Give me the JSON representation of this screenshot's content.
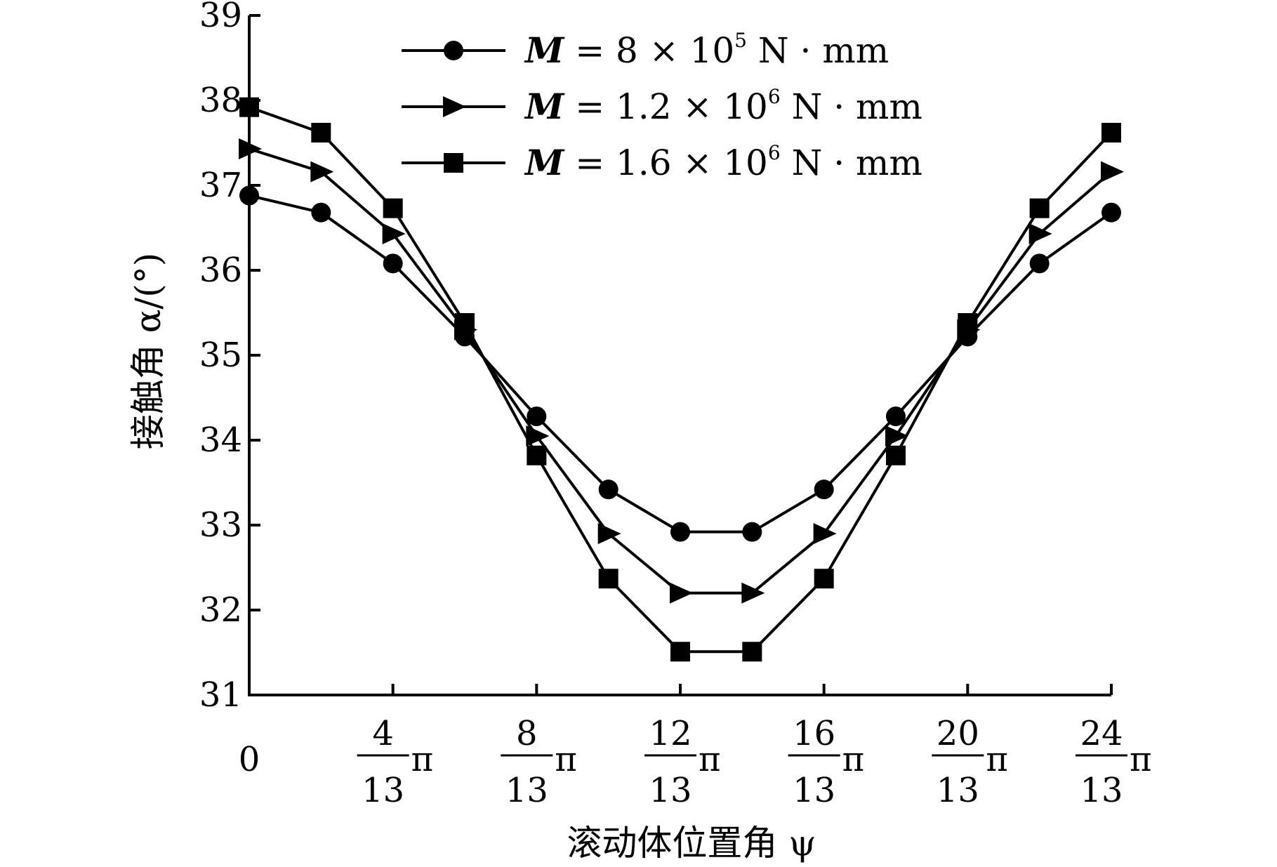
{
  "chart_data": {
    "type": "line",
    "xlabel": "滚动体位置角 ψ",
    "ylabel": "接触角 α/(°)",
    "ylim": [
      31,
      39
    ],
    "xlim": [
      0,
      24
    ],
    "x_unit": "π/13",
    "grid": false,
    "legend_position": "top-center",
    "y_ticks": [
      31,
      32,
      33,
      34,
      35,
      36,
      37,
      38,
      39
    ],
    "x_ticks": [
      {
        "value": 0,
        "numerator": "0",
        "denominator": "",
        "suffix": ""
      },
      {
        "value": 4,
        "numerator": "4",
        "denominator": "13",
        "suffix": "π"
      },
      {
        "value": 8,
        "numerator": "8",
        "denominator": "13",
        "suffix": "π"
      },
      {
        "value": 12,
        "numerator": "12",
        "denominator": "13",
        "suffix": "π"
      },
      {
        "value": 16,
        "numerator": "16",
        "denominator": "13",
        "suffix": "π"
      },
      {
        "value": 20,
        "numerator": "20",
        "denominator": "13",
        "suffix": "π"
      },
      {
        "value": 24,
        "numerator": "24",
        "denominator": "13",
        "suffix": "π"
      }
    ],
    "x": [
      0,
      2,
      4,
      6,
      8,
      10,
      12,
      14,
      16,
      18,
      20,
      22,
      24
    ],
    "series": [
      {
        "name": "M = 8 × 10⁵ N · mm",
        "label_parts": {
          "var": "M",
          "eq": " = 8 × 10",
          "exp": "5",
          "unit": " N · mm"
        },
        "marker": "circle",
        "color": "#000000",
        "values": [
          36.88,
          36.68,
          36.08,
          35.22,
          34.28,
          33.42,
          32.92,
          32.92,
          33.42,
          34.28,
          35.22,
          36.08,
          36.68
        ]
      },
      {
        "name": "M = 1.2 × 10⁶ N · mm",
        "label_parts": {
          "var": "M",
          "eq": " = 1.2 × 10",
          "exp": "6",
          "unit": " N · mm"
        },
        "marker": "triangle-right",
        "color": "#000000",
        "values": [
          37.43,
          37.16,
          36.43,
          35.3,
          34.05,
          32.9,
          32.2,
          32.2,
          32.9,
          34.05,
          35.3,
          36.43,
          37.16
        ]
      },
      {
        "name": "M = 1.6 × 10⁶ N · mm",
        "label_parts": {
          "var": "M",
          "eq": " = 1.6 × 10",
          "exp": "6",
          "unit": " N · mm"
        },
        "marker": "square",
        "color": "#000000",
        "values": [
          37.92,
          37.62,
          36.73,
          35.38,
          33.82,
          32.37,
          31.51,
          31.51,
          32.37,
          33.82,
          35.38,
          36.73,
          37.62
        ]
      }
    ]
  }
}
